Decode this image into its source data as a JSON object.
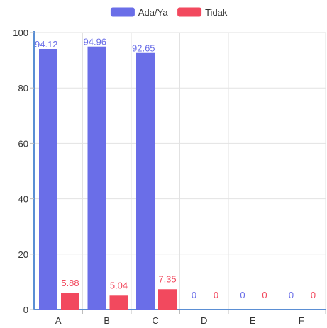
{
  "chart_data": {
    "type": "bar",
    "categories": [
      "A",
      "B",
      "C",
      "D",
      "E",
      "F"
    ],
    "series": [
      {
        "name": "Ada/Ya",
        "color": "#6a6ee8",
        "values": [
          94.12,
          94.96,
          92.65,
          0,
          0,
          0
        ]
      },
      {
        "name": "Tidak",
        "color": "#f2495e",
        "values": [
          5.88,
          5.04,
          7.35,
          0,
          0,
          0
        ]
      }
    ],
    "y_ticks": [
      0,
      20,
      40,
      60,
      80,
      100
    ],
    "ylim": [
      0,
      100
    ],
    "grid": true,
    "legend_position": "top-center",
    "data_labels": true
  }
}
